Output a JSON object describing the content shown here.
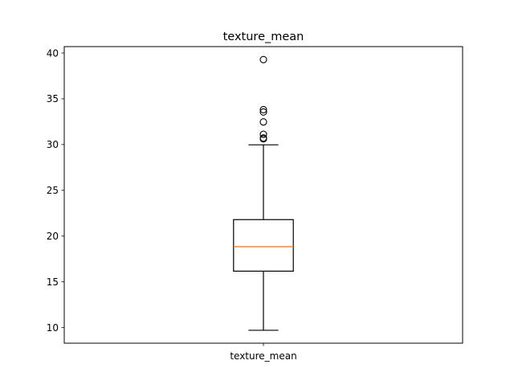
{
  "chart_data": {
    "type": "boxplot",
    "title": "texture_mean",
    "xlabel": "",
    "ylabel": "",
    "categories": [
      "texture_mean"
    ],
    "ylim": [
      8.3,
      40.7
    ],
    "yticks": [
      10,
      15,
      20,
      25,
      30,
      35,
      40
    ],
    "ytick_labels": [
      "10",
      "15",
      "20",
      "25",
      "30",
      "35",
      "40"
    ],
    "grid": false,
    "boxes": [
      {
        "category": "texture_mean",
        "whisker_low": 9.71,
        "q1": 16.17,
        "median": 18.84,
        "q3": 21.8,
        "whisker_high": 29.97,
        "outliers": [
          39.28,
          33.81,
          33.56,
          32.47,
          31.12,
          30.72,
          30.62
        ]
      }
    ],
    "colors": {
      "box": "#000000",
      "median": "#ff7f0e",
      "outlier": "#000000"
    }
  }
}
